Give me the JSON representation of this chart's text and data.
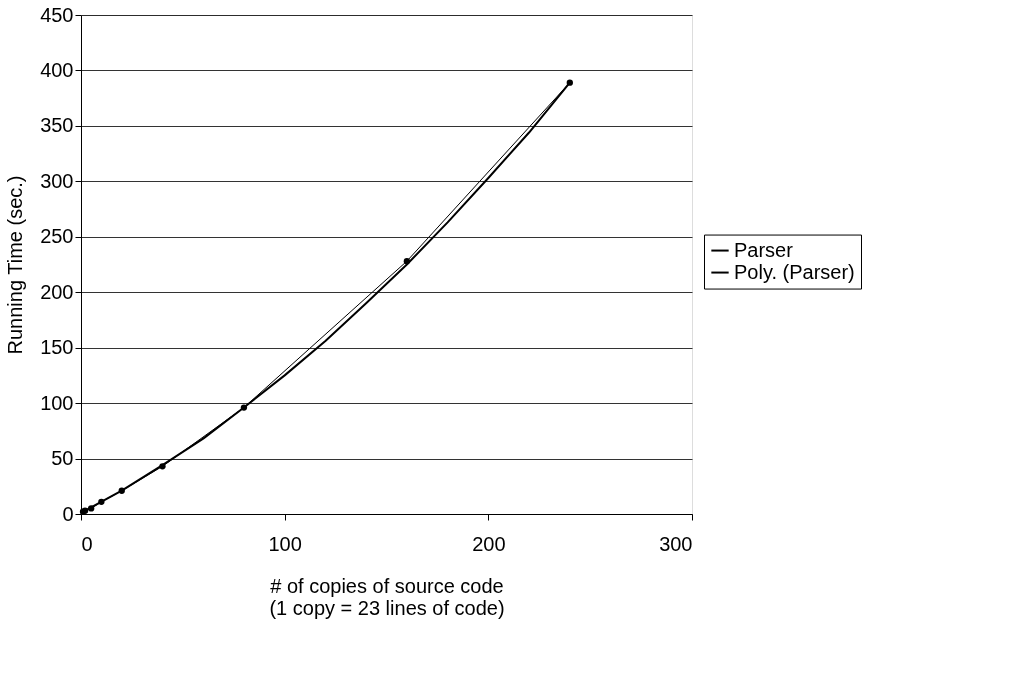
{
  "chart_data": {
    "type": "line",
    "xlabel": "# of copies of source code\n(1 copy = 23 lines of code)",
    "ylabel": "Running Time (sec.)",
    "xlim": [
      0,
      300
    ],
    "xticks": [
      0,
      100,
      200,
      300
    ],
    "ylim": [
      0,
      450
    ],
    "yticks": [
      0,
      50,
      100,
      150,
      200,
      250,
      300,
      350,
      400,
      450
    ],
    "grid": "y",
    "legend": "right",
    "series": [
      {
        "name": "Parser",
        "color": "#000000",
        "marker": "circle",
        "x": [
          1,
          2,
          5,
          10,
          20,
          40,
          80,
          160,
          240
        ],
        "values": [
          2,
          3,
          5,
          11,
          21,
          43,
          96,
          228,
          389
        ]
      },
      {
        "name": "Poly. (Parser)",
        "color": "#000000",
        "marker": "none",
        "x": [
          0,
          20,
          40,
          60,
          80,
          100,
          120,
          140,
          160,
          180,
          200,
          220,
          240
        ],
        "values": [
          1,
          21,
          44,
          68,
          96,
          125,
          156,
          190,
          225,
          263,
          303,
          344,
          389
        ]
      }
    ]
  }
}
